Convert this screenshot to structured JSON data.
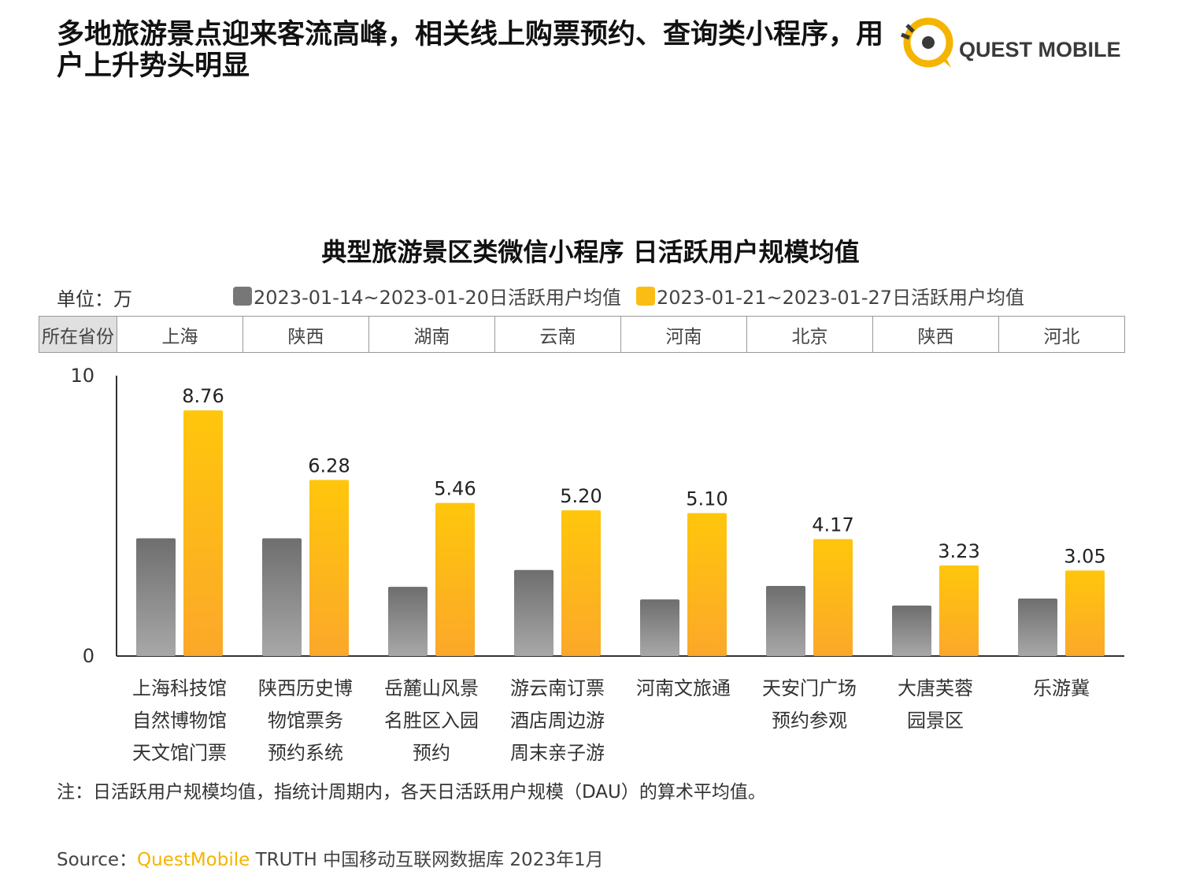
{
  "headline": "多地旅游景点迎来客流高峰，相关线上购票预约、查询类小程序，用户上升势头明显",
  "brand": {
    "name": "QUEST MOBILE",
    "accent": "#f5b400",
    "text_color": "#3a3a3a"
  },
  "chart_data": {
    "type": "bar",
    "title": "典型旅游景区类微信小程序 日活跃用户规模均值",
    "unit_label": "单位：万",
    "province_header": "所在省份",
    "provinces": [
      "上海",
      "陕西",
      "湖南",
      "云南",
      "河南",
      "北京",
      "陕西",
      "河北"
    ],
    "categories": [
      [
        "上海科技馆",
        "自然博物馆",
        "天文馆门票"
      ],
      [
        "陕西历史博",
        "物馆票务",
        "预约系统"
      ],
      [
        "岳麓山风景",
        "名胜区入园",
        "预约"
      ],
      [
        "游云南订票",
        "酒店周边游",
        "周末亲子游"
      ],
      [
        "河南文旅通"
      ],
      [
        "天安门广场",
        "预约参观"
      ],
      [
        "大唐芙蓉",
        "园景区"
      ],
      [
        "乐游冀"
      ]
    ],
    "series": [
      {
        "name": "2023-01-14~2023-01-20日活跃用户均值",
        "color": "#7a7a7a",
        "values": [
          4.2,
          4.2,
          2.47,
          3.07,
          2.02,
          2.5,
          1.8,
          2.05
        ]
      },
      {
        "name": "2023-01-21~2023-01-27日活跃用户均值",
        "color": "#fbbd13",
        "values": [
          8.76,
          6.28,
          5.46,
          5.2,
          5.1,
          4.17,
          3.23,
          3.05
        ],
        "labels": [
          "8.76",
          "6.28",
          "5.46",
          "5.20",
          "5.10",
          "4.17",
          "3.23",
          "3.05"
        ]
      }
    ],
    "ylim": [
      0,
      10
    ],
    "yticks": [
      "0",
      "10"
    ],
    "grid": false,
    "legend_position": "top"
  },
  "note": "注：日活跃用户规模均值，指统计周期内，各天日活跃用户规模（DAU）的算术平均值。",
  "source": {
    "prefix": "Source：",
    "brand": "QuestMobile",
    "rest": " TRUTH 中国移动互联网数据库 2023年1月"
  }
}
